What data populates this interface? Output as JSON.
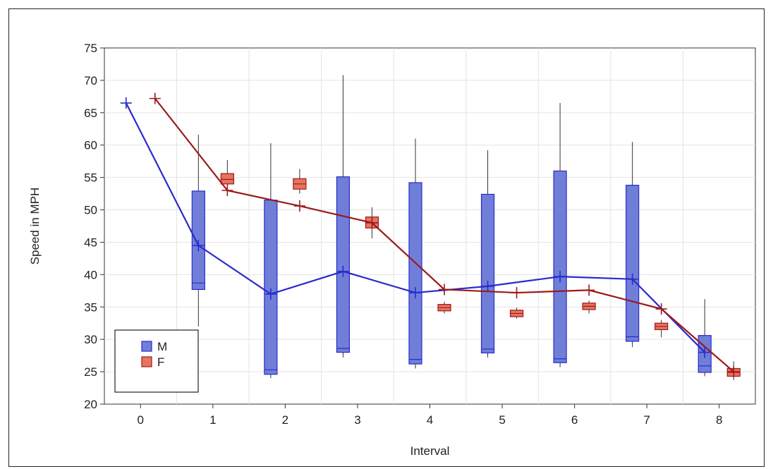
{
  "chart_data": {
    "type": "box",
    "title": "",
    "xlabel": "Interval",
    "ylabel": "Speed in MPH",
    "xlim": [
      -0.5,
      8.5
    ],
    "ylim": [
      20,
      75
    ],
    "x_ticks": [
      0,
      1,
      2,
      3,
      4,
      5,
      6,
      7,
      8
    ],
    "y_ticks": [
      20,
      25,
      30,
      35,
      40,
      45,
      50,
      55,
      60,
      65,
      70,
      75
    ],
    "grid": true,
    "legend_position": "bottom-left",
    "series": [
      {
        "name": "M",
        "color": "#6f7fd8",
        "line_color": "#2a2acc",
        "offset": -0.2,
        "boxes": [
          {
            "x": 0,
            "min": 66.5,
            "q1": 66.5,
            "median": 66.5,
            "q3": 66.5,
            "max": 66.5,
            "mean": 66.5
          },
          {
            "x": 1,
            "min": 32.0,
            "q1": 37.7,
            "median": 38.7,
            "q3": 52.9,
            "max": 61.6,
            "mean": 44.5
          },
          {
            "x": 2,
            "min": 24.0,
            "q1": 24.6,
            "median": 25.3,
            "q3": 51.5,
            "max": 60.3,
            "mean": 37.0
          },
          {
            "x": 3,
            "min": 27.2,
            "q1": 28.0,
            "median": 28.6,
            "q3": 55.1,
            "max": 70.8,
            "mean": 40.5
          },
          {
            "x": 4,
            "min": 25.5,
            "q1": 26.2,
            "median": 26.9,
            "q3": 54.2,
            "max": 61.0,
            "mean": 37.2
          },
          {
            "x": 5,
            "min": 27.2,
            "q1": 27.9,
            "median": 28.5,
            "q3": 52.4,
            "max": 59.2,
            "mean": 38.2
          },
          {
            "x": 6,
            "min": 25.7,
            "q1": 26.4,
            "median": 27.0,
            "q3": 56.0,
            "max": 66.5,
            "mean": 39.7
          },
          {
            "x": 7,
            "min": 28.8,
            "q1": 29.7,
            "median": 30.4,
            "q3": 53.8,
            "max": 60.5,
            "mean": 39.3
          },
          {
            "x": 8,
            "min": 24.3,
            "q1": 24.9,
            "median": 25.9,
            "q3": 30.6,
            "max": 36.2,
            "mean": 28.0
          }
        ]
      },
      {
        "name": "F",
        "color": "#e8735f",
        "line_color": "#9b1a1a",
        "offset": 0.2,
        "boxes": [
          {
            "x": 0,
            "min": 67.2,
            "q1": 67.2,
            "median": 67.2,
            "q3": 67.2,
            "max": 67.2,
            "mean": 67.2
          },
          {
            "x": 1,
            "min": 52.2,
            "q1": 54.0,
            "median": 54.7,
            "q3": 55.6,
            "max": 57.7,
            "mean": 53.0
          },
          {
            "x": 2,
            "min": 52.5,
            "q1": 53.2,
            "median": 54.0,
            "q3": 54.8,
            "max": 56.3,
            "mean": 50.6
          },
          {
            "x": 3,
            "min": 45.6,
            "q1": 47.2,
            "median": 48.0,
            "q3": 48.9,
            "max": 50.4,
            "mean": 48.0
          },
          {
            "x": 4,
            "min": 34.0,
            "q1": 34.4,
            "median": 34.9,
            "q3": 35.4,
            "max": 35.8,
            "mean": 37.7
          },
          {
            "x": 5,
            "min": 33.2,
            "q1": 33.5,
            "median": 34.0,
            "q3": 34.5,
            "max": 34.9,
            "mean": 37.2
          },
          {
            "x": 6,
            "min": 34.0,
            "q1": 34.6,
            "median": 35.1,
            "q3": 35.6,
            "max": 36.0,
            "mean": 37.6
          },
          {
            "x": 7,
            "min": 30.3,
            "q1": 31.5,
            "median": 32.0,
            "q3": 32.5,
            "max": 33.0,
            "mean": 34.7
          },
          {
            "x": 8,
            "min": 23.7,
            "q1": 24.3,
            "median": 24.9,
            "q3": 25.5,
            "max": 26.6,
            "mean": 25.0
          }
        ]
      }
    ]
  }
}
